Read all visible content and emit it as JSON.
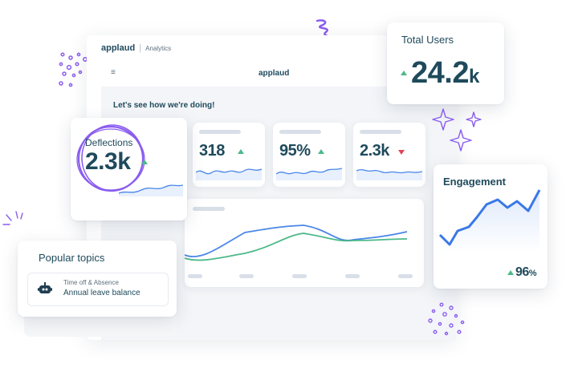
{
  "window": {
    "brand": "applaud",
    "product": "Analytics",
    "menu_icon": "≡",
    "center_brand": "applaud",
    "greeting": "Let's see how we're doing!"
  },
  "stats": [
    {
      "value": "318",
      "trend": "up"
    },
    {
      "value": "95%",
      "trend": "up"
    },
    {
      "value": "2.3k",
      "trend": "down"
    }
  ],
  "total_users": {
    "label": "Total Users",
    "value": "24.2",
    "unit": "k",
    "trend": "up"
  },
  "deflections": {
    "label": "Deflections",
    "value": "2.3k",
    "trend": "up"
  },
  "engagement": {
    "label": "Engagement",
    "value": "96",
    "unit": "%",
    "trend": "up"
  },
  "popular_topics": {
    "title": "Popular topics",
    "item": {
      "category": "Time off & Absence",
      "title": "Annual leave balance",
      "icon": "robot-icon"
    }
  },
  "colors": {
    "accent_purple": "#8a5cf0",
    "line_blue": "#4a86e8",
    "line_green": "#4bb98a",
    "trend_up": "#4bb98a",
    "trend_down": "#e0445a",
    "text_dark": "#1f4a5c"
  }
}
